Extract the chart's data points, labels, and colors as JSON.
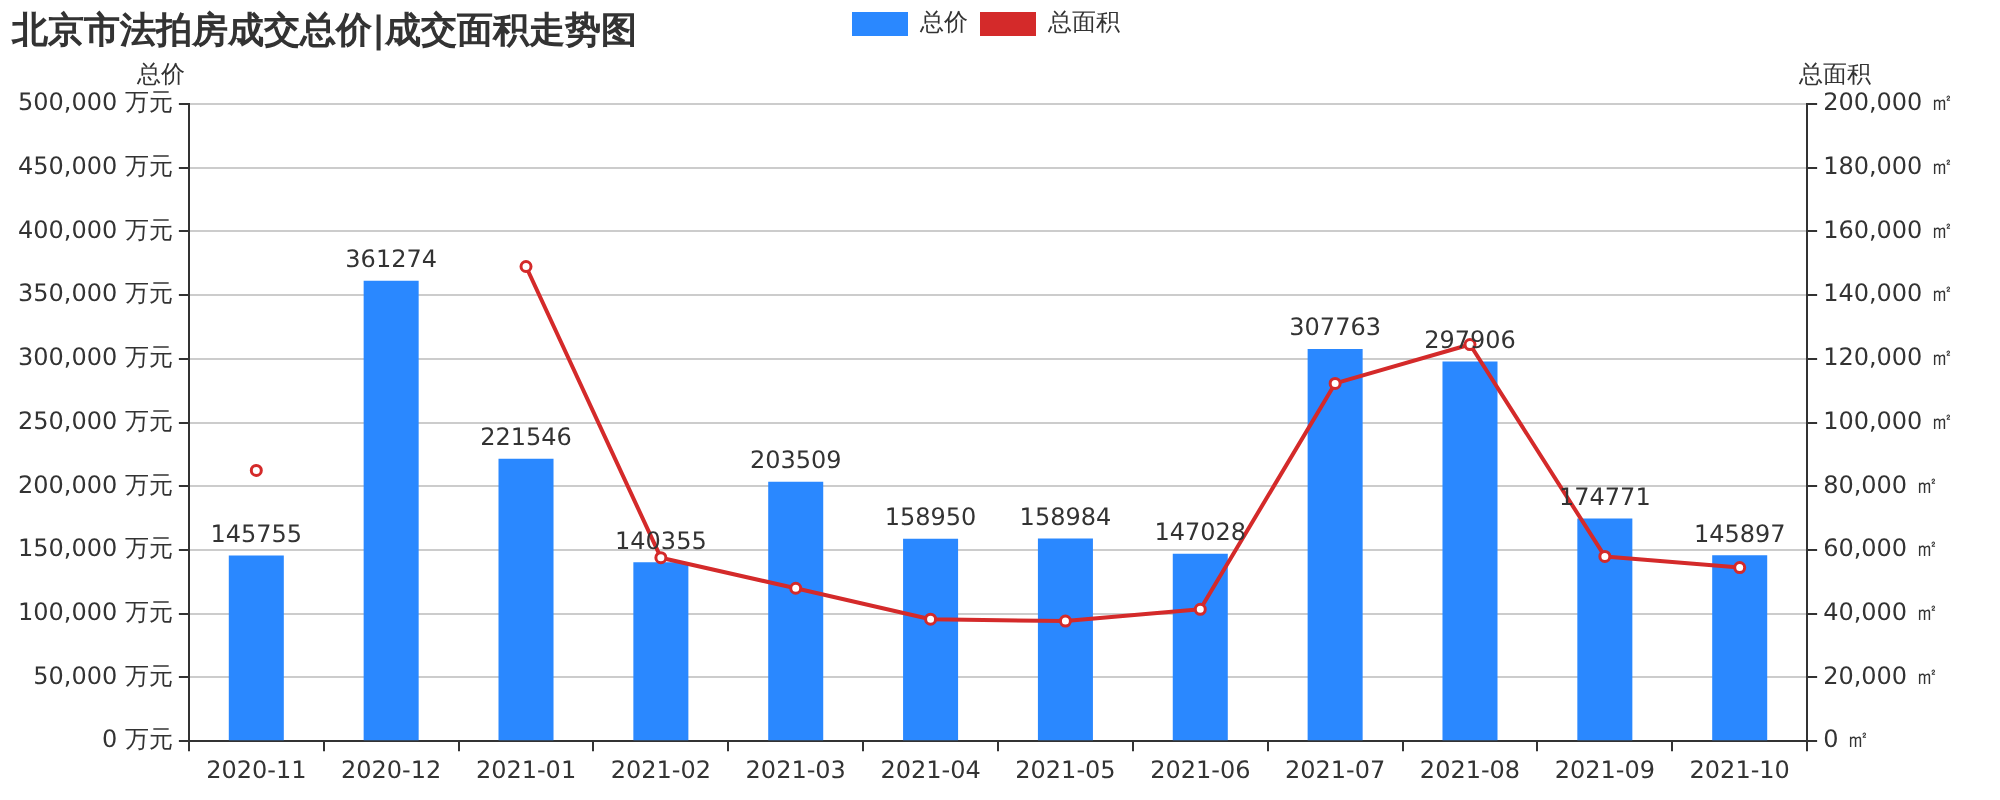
{
  "chart_data": {
    "type": "bar",
    "title": "北京市法拍房成交总价|成交面积走势图",
    "ylabel": "总价",
    "y2label": "总面积",
    "categories": [
      "2020-11",
      "2020-12",
      "2021-01",
      "2021-02",
      "2021-03",
      "2021-04",
      "2021-05",
      "2021-06",
      "2021-07",
      "2021-08",
      "2021-09",
      "2021-10"
    ],
    "series": [
      {
        "name": "总价",
        "color": "#2a88ff",
        "values": [
          145755,
          361274,
          221546,
          140355,
          203509,
          158950,
          158984,
          147028,
          307763,
          297906,
          174771,
          145897
        ],
        "value_labels": [
          "145755",
          "361274",
          "221546",
          "140355",
          "203509",
          "158950",
          "158984",
          "147028",
          "307763",
          "297906",
          "174771",
          "145897"
        ]
      },
      {
        "name": "总面积",
        "type": "line",
        "axis": "y2",
        "color": "#d42a2a",
        "marker": "circle",
        "values": [
          85000,
          null,
          149000,
          57600,
          48000,
          38300,
          37700,
          41400,
          112300,
          124500,
          58000,
          54500
        ]
      }
    ],
    "ylim": [
      0,
      500000
    ],
    "yticks": [
      {
        "value": 0,
        "label": "0 万元"
      },
      {
        "value": 50000,
        "label": "50,000 万元"
      },
      {
        "value": 100000,
        "label": "100,000 万元"
      },
      {
        "value": 150000,
        "label": "150,000 万元"
      },
      {
        "value": 200000,
        "label": "200,000 万元"
      },
      {
        "value": 250000,
        "label": "250,000 万元"
      },
      {
        "value": 300000,
        "label": "300,000 万元"
      },
      {
        "value": 350000,
        "label": "350,000 万元"
      },
      {
        "value": 400000,
        "label": "400,000 万元"
      },
      {
        "value": 450000,
        "label": "450,000 万元"
      },
      {
        "value": 500000,
        "label": "500,000 万元"
      }
    ],
    "y2lim": [
      0,
      200000
    ],
    "y2ticks": [
      {
        "value": 0,
        "label": "0 ㎡"
      },
      {
        "value": 20000,
        "label": "20,000 ㎡"
      },
      {
        "value": 40000,
        "label": "40,000 ㎡"
      },
      {
        "value": 60000,
        "label": "60,000 ㎡"
      },
      {
        "value": 80000,
        "label": "80,000 ㎡"
      },
      {
        "value": 100000,
        "label": "100,000 ㎡"
      },
      {
        "value": 120000,
        "label": "120,000 ㎡"
      },
      {
        "value": 140000,
        "label": "140,000 ㎡"
      },
      {
        "value": 160000,
        "label": "160,000 ㎡"
      },
      {
        "value": 180000,
        "label": "180,000 ㎡"
      },
      {
        "value": 200000,
        "label": "200,000 ㎡"
      }
    ],
    "grid": "y",
    "legend": "top"
  }
}
